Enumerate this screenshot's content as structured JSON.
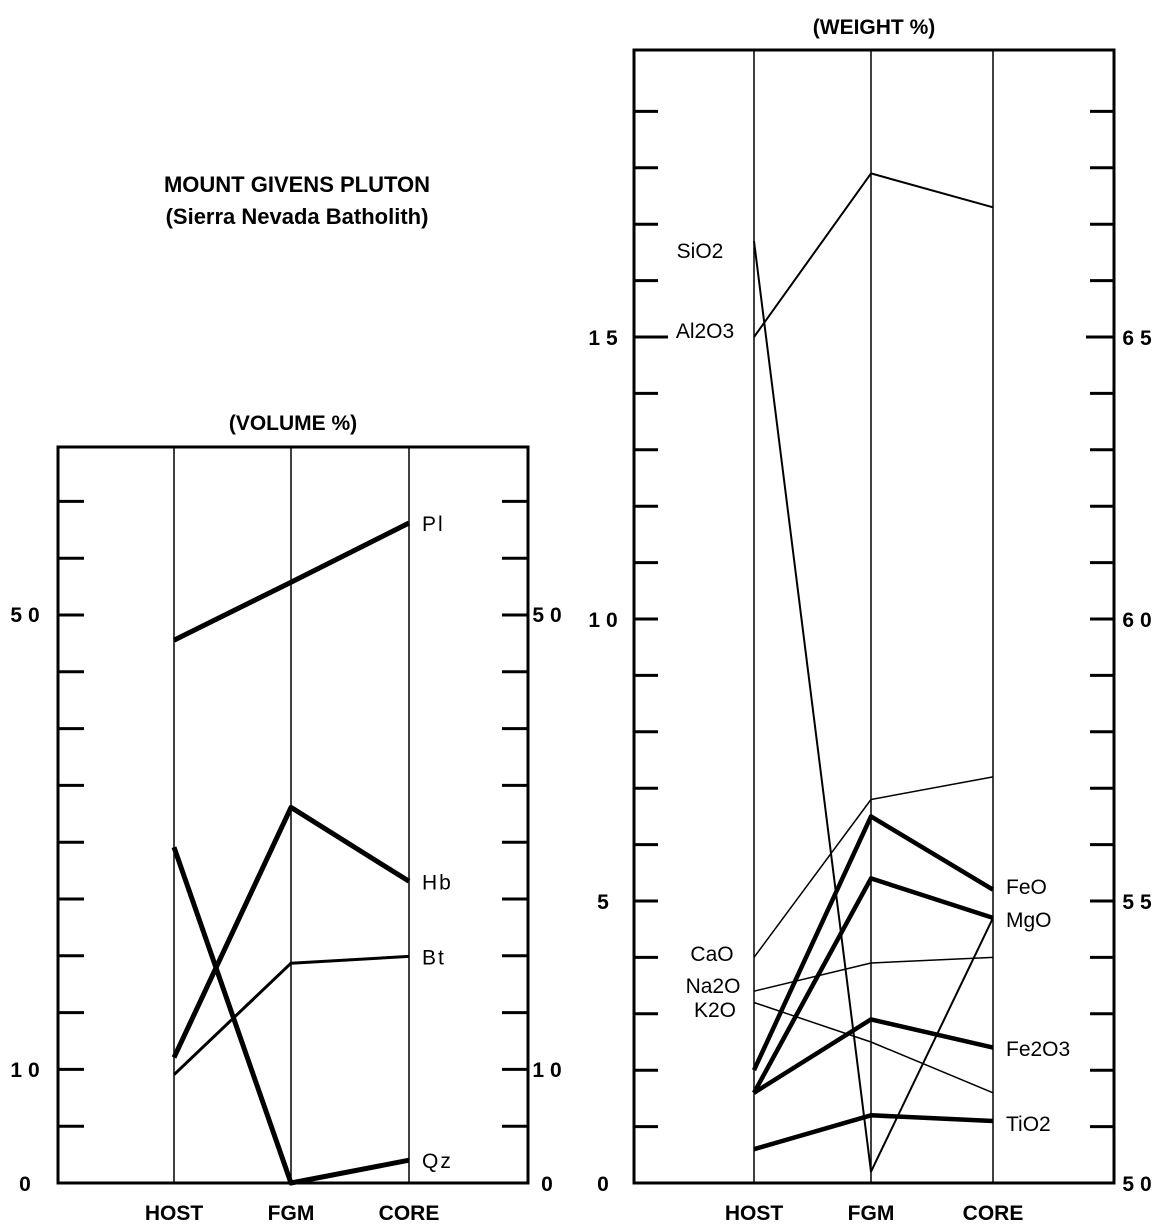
{
  "heading": {
    "line1": "MOUNT   GIVENS   PLUTON",
    "line2": "(Sierra   Nevada   Batholith)"
  },
  "chart_data": [
    {
      "type": "line",
      "title": "(VOLUME %)",
      "categories": [
        "HOST",
        "FGM",
        "CORE"
      ],
      "y_left_ticks": [
        "50",
        "10",
        "0"
      ],
      "y_right_ticks": [
        "50",
        "10",
        "0"
      ],
      "series": [
        {
          "name": "Pl",
          "values": [
            47.7,
            52.8,
            58.0
          ]
        },
        {
          "name": "Hb",
          "values": [
            11.0,
            33.0,
            26.5
          ]
        },
        {
          "name": "Bt",
          "values": [
            9.5,
            19.3,
            19.9
          ]
        },
        {
          "name": "Qz",
          "values": [
            29.5,
            0.0,
            2.0
          ]
        }
      ]
    },
    {
      "type": "line",
      "title": "(WEIGHT  %)",
      "categories": [
        "HOST",
        "FGM",
        "CORE"
      ],
      "y_left_ticks": [
        "15",
        "10",
        "5",
        "0"
      ],
      "y_right_ticks": [
        "65",
        "60",
        "55",
        "50"
      ],
      "series": [
        {
          "name": "SiO2",
          "axis": "right",
          "values": [
            66.7,
            50.2,
            54.7
          ]
        },
        {
          "name": "Al2O3",
          "axis": "left",
          "values": [
            15.0,
            17.9,
            17.3
          ]
        },
        {
          "name": "CaO",
          "axis": "left",
          "values": [
            4.0,
            6.8,
            7.2
          ]
        },
        {
          "name": "FeO",
          "axis": "left",
          "values": [
            2.0,
            6.5,
            5.2
          ]
        },
        {
          "name": "MgO",
          "axis": "left",
          "values": [
            1.6,
            5.4,
            4.7
          ]
        },
        {
          "name": "Na2O",
          "axis": "left",
          "values": [
            3.4,
            3.9,
            4.0
          ]
        },
        {
          "name": "K2O",
          "axis": "left",
          "values": [
            3.2,
            2.5,
            1.6
          ]
        },
        {
          "name": "Fe2O3",
          "axis": "left",
          "values": [
            1.6,
            2.9,
            2.4
          ]
        },
        {
          "name": "TiO2",
          "axis": "left",
          "values": [
            0.6,
            1.2,
            1.1
          ]
        }
      ]
    }
  ]
}
